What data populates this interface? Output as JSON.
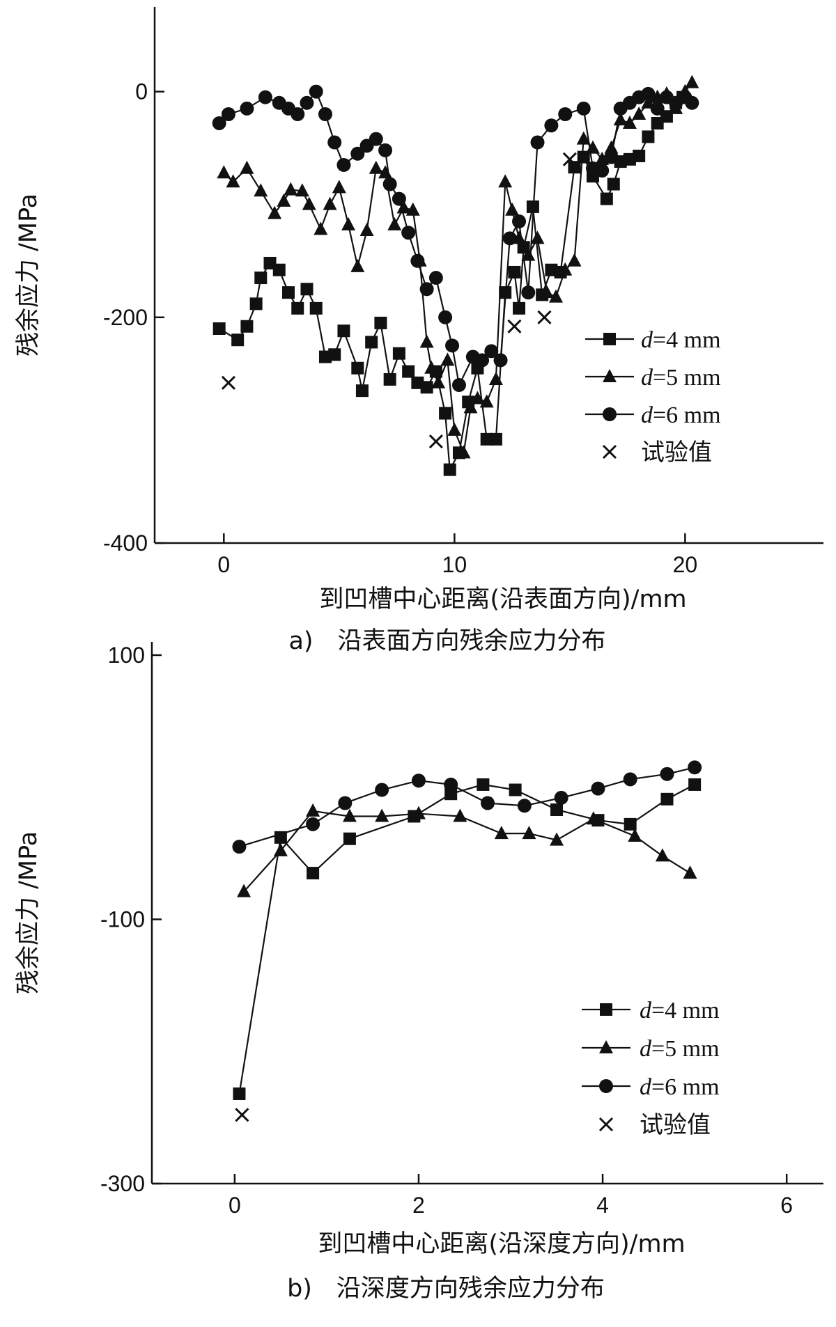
{
  "chart_data": [
    {
      "type": "line",
      "caption": "a)　沿表面方向残余应力分布",
      "xlabel": "到凹槽中心距离(沿表面方向)/mm",
      "ylabel": "残余应力 /MPa",
      "xlim": [
        -3,
        26
      ],
      "ylim": [
        -400,
        75
      ],
      "xticks": [
        0,
        10,
        20
      ],
      "yticks": [
        0,
        -200,
        -400
      ],
      "legend_position": "right",
      "series": [
        {
          "name": "d=4 mm",
          "marker": "square",
          "x": [
            -0.2,
            0.6,
            1.0,
            1.4,
            1.6,
            2.0,
            2.4,
            2.8,
            3.2,
            3.6,
            4.0,
            4.4,
            4.8,
            5.2,
            5.8,
            6.0,
            6.4,
            6.8,
            7.2,
            7.6,
            8.0,
            8.4,
            8.8,
            9.2,
            9.6,
            9.8,
            10.2,
            10.6,
            11.0,
            11.4,
            11.8,
            12.2,
            12.6,
            12.8,
            13.0,
            13.4,
            13.8,
            14.2,
            14.6,
            15.2,
            15.6,
            16.0,
            16.6,
            16.9,
            17.2,
            17.6,
            18.0,
            18.4,
            18.8,
            19.2,
            19.6,
            19.9
          ],
          "y": [
            -210,
            -220,
            -208,
            -188,
            -165,
            -152,
            -158,
            -178,
            -192,
            -175,
            -192,
            -235,
            -233,
            -212,
            -245,
            -265,
            -222,
            -205,
            -255,
            -232,
            -248,
            -258,
            -262,
            -248,
            -285,
            -335,
            -320,
            -275,
            -245,
            -308,
            -308,
            -178,
            -160,
            -192,
            -138,
            -102,
            -180,
            -158,
            -160,
            -67,
            -58,
            -75,
            -95,
            -82,
            -62,
            -60,
            -57,
            -40,
            -28,
            -22,
            -10,
            -5
          ]
        },
        {
          "name": "d=5 mm",
          "marker": "triangle",
          "x": [
            0.0,
            0.4,
            1.0,
            1.6,
            2.2,
            2.6,
            2.9,
            3.4,
            3.7,
            4.2,
            4.6,
            5.0,
            5.4,
            5.8,
            6.2,
            6.6,
            7.0,
            7.4,
            7.8,
            8.2,
            8.5,
            8.8,
            9.0,
            9.3,
            9.7,
            10.0,
            10.4,
            10.7,
            11.0,
            11.4,
            11.8,
            12.2,
            12.5,
            12.8,
            13.2,
            13.6,
            14.0,
            14.4,
            14.8,
            15.2,
            15.6,
            16.0,
            16.4,
            16.8,
            17.2,
            17.6,
            18.0,
            18.4,
            18.8,
            19.2,
            19.6,
            20.0,
            20.3
          ],
          "y": [
            -72,
            -80,
            -68,
            -88,
            -108,
            -97,
            -87,
            -88,
            -100,
            -122,
            -100,
            -85,
            -118,
            -155,
            -123,
            -68,
            -72,
            -118,
            -103,
            -105,
            -150,
            -222,
            -245,
            -258,
            -238,
            -300,
            -320,
            -280,
            -272,
            -275,
            -255,
            -80,
            -105,
            -130,
            -145,
            -130,
            -178,
            -182,
            -158,
            -150,
            -42,
            -50,
            -60,
            -50,
            -25,
            -28,
            -20,
            -10,
            -5,
            -2,
            -15,
            0,
            8
          ]
        },
        {
          "name": "d=6 mm",
          "marker": "circle",
          "x": [
            -0.2,
            0.2,
            1.0,
            1.8,
            2.4,
            2.8,
            3.2,
            3.6,
            4.0,
            4.4,
            4.8,
            5.2,
            5.8,
            6.2,
            6.6,
            7.0,
            7.2,
            7.6,
            8.0,
            8.4,
            8.8,
            9.2,
            9.6,
            9.9,
            10.2,
            10.8,
            11.2,
            11.6,
            12.0,
            12.4,
            12.8,
            13.2,
            13.6,
            14.2,
            14.8,
            15.6,
            16.0,
            16.4,
            16.8,
            17.2,
            17.6,
            18.0,
            18.4,
            18.8,
            19.2,
            19.6,
            20.0,
            20.3
          ],
          "y": [
            -28,
            -20,
            -15,
            -5,
            -10,
            -15,
            -20,
            -10,
            0,
            -20,
            -45,
            -65,
            -55,
            -48,
            -42,
            -52,
            -82,
            -95,
            -125,
            -150,
            -175,
            -165,
            -200,
            -225,
            -260,
            -235,
            -238,
            -230,
            -238,
            -130,
            -115,
            -178,
            -45,
            -30,
            -20,
            -15,
            -68,
            -70,
            -58,
            -15,
            -10,
            -5,
            -2,
            -15,
            -5,
            -10,
            -5,
            -10
          ]
        },
        {
          "name": "试验值",
          "marker": "x",
          "x": [
            0.2,
            9.2,
            12.6,
            13.9,
            15.0
          ],
          "y": [
            -258,
            -310,
            -208,
            -200,
            -60
          ]
        }
      ]
    },
    {
      "type": "line",
      "caption": "b)　沿深度方向残余应力分布",
      "xlabel": "到凹槽中心距离(沿深度方向)/mm",
      "ylabel": "残余应力 /MPa",
      "xlim": [
        -0.9,
        6.4
      ],
      "ylim": [
        -300,
        110
      ],
      "xticks": [
        0,
        2,
        4,
        6
      ],
      "yticks": [
        100,
        -100,
        -300
      ],
      "legend_position": "bottom-right",
      "series": [
        {
          "name": "d=4 mm",
          "marker": "square",
          "x": [
            0.05,
            0.5,
            0.85,
            1.25,
            1.95,
            2.35,
            2.7,
            3.05,
            3.5,
            3.95,
            4.3,
            4.7,
            5.0
          ],
          "y": [
            -232,
            -38,
            -65,
            -39,
            -22,
            -5,
            2,
            -2,
            -17,
            -25,
            -28,
            -9,
            2
          ]
        },
        {
          "name": "d=5 mm",
          "marker": "triangle",
          "x": [
            0.1,
            0.5,
            0.85,
            1.25,
            1.6,
            2.0,
            2.45,
            2.9,
            3.2,
            3.5,
            3.9,
            4.35,
            4.65,
            4.95
          ],
          "y": [
            -79,
            -48,
            -18,
            -22,
            -22,
            -20,
            -22,
            -35,
            -35,
            -40,
            -24,
            -37,
            -52,
            -65
          ]
        },
        {
          "name": "d=6 mm",
          "marker": "circle",
          "x": [
            0.05,
            0.85,
            1.2,
            1.6,
            2.0,
            2.35,
            2.75,
            3.15,
            3.55,
            3.95,
            4.3,
            4.7,
            5.0
          ],
          "y": [
            -45,
            -28,
            -12,
            -2,
            5,
            2,
            -12,
            -14,
            -8,
            -1,
            6,
            10,
            15
          ]
        },
        {
          "name": "试验值",
          "marker": "x",
          "x": [
            0.08
          ],
          "y": [
            -248
          ]
        }
      ]
    }
  ]
}
